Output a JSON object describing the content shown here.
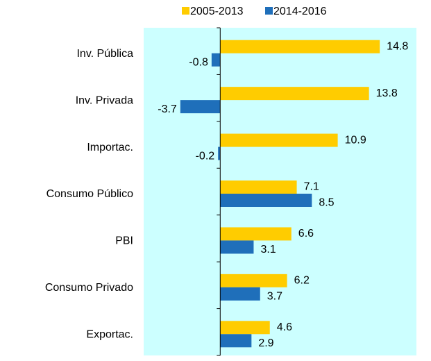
{
  "chart_data": {
    "type": "hbar",
    "categories": [
      "Inv. Pública",
      "Inv. Privada",
      "Importac.",
      "Consumo Público",
      "PBI",
      "Consumo Privado",
      "Exportac."
    ],
    "series": [
      {
        "name": "2005-2013",
        "color": "#ffcc00",
        "values": [
          14.8,
          13.8,
          10.9,
          7.1,
          6.6,
          6.2,
          4.6
        ]
      },
      {
        "name": "2014-2016",
        "color": "#1f6fba",
        "values": [
          -0.8,
          -3.7,
          -0.2,
          8.5,
          3.1,
          3.7,
          2.9
        ]
      }
    ],
    "xlim": [
      -7.1,
      18.2
    ],
    "background": "#ccffff",
    "legend": "top"
  }
}
